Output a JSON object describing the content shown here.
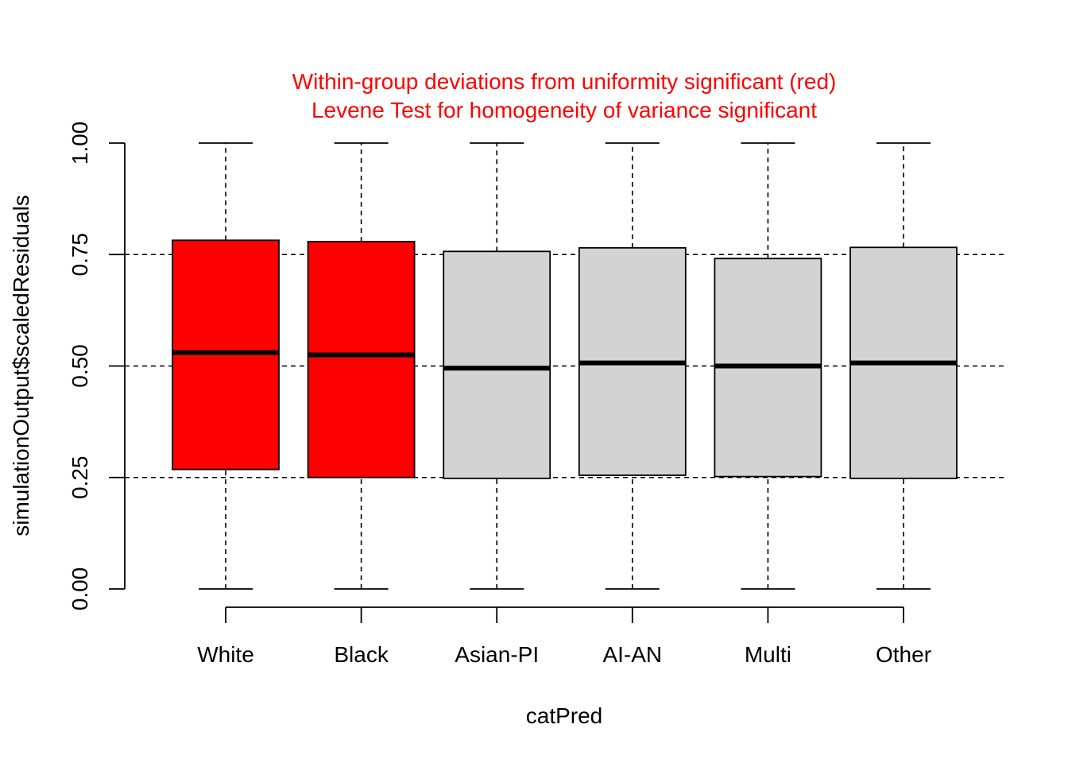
{
  "chart_data": {
    "type": "boxplot",
    "title": [
      "Within-group deviations from uniformity significant (red)",
      "Levene Test for homogeneity of variance significant"
    ],
    "title_color": "#FF0000",
    "xlabel": "catPred",
    "ylabel": "simulationOutput$scaledResiduals",
    "ylim": [
      0,
      1
    ],
    "yticks": [
      0.0,
      0.25,
      0.5,
      0.75,
      1.0
    ],
    "ytick_labels": [
      "0.00",
      "0.25",
      "0.50",
      "0.75",
      "1.00"
    ],
    "reference_lines": [
      0.25,
      0.5,
      0.75
    ],
    "categories": [
      "White",
      "Black",
      "Asian-PI",
      "AI-AN",
      "Multi",
      "Other"
    ],
    "boxes": [
      {
        "category": "White",
        "min": 0.0,
        "q1": 0.268,
        "median": 0.53,
        "q3": 0.782,
        "max": 1.0,
        "significant": true
      },
      {
        "category": "Black",
        "min": 0.0,
        "q1": 0.25,
        "median": 0.525,
        "q3": 0.779,
        "max": 1.0,
        "significant": true
      },
      {
        "category": "Asian-PI",
        "min": 0.0,
        "q1": 0.248,
        "median": 0.495,
        "q3": 0.757,
        "max": 1.0,
        "significant": false
      },
      {
        "category": "AI-AN",
        "min": 0.0,
        "q1": 0.255,
        "median": 0.507,
        "q3": 0.765,
        "max": 1.0,
        "significant": false
      },
      {
        "category": "Multi",
        "min": 0.0,
        "q1": 0.252,
        "median": 0.5,
        "q3": 0.741,
        "max": 1.0,
        "significant": false
      },
      {
        "category": "Other",
        "min": 0.0,
        "q1": 0.248,
        "median": 0.507,
        "q3": 0.766,
        "max": 1.0,
        "significant": false
      }
    ],
    "colors": {
      "significant": "#FF0000",
      "not_significant": "#D3D3D3",
      "axis": "#000000"
    },
    "legend": "none",
    "grid": false
  }
}
